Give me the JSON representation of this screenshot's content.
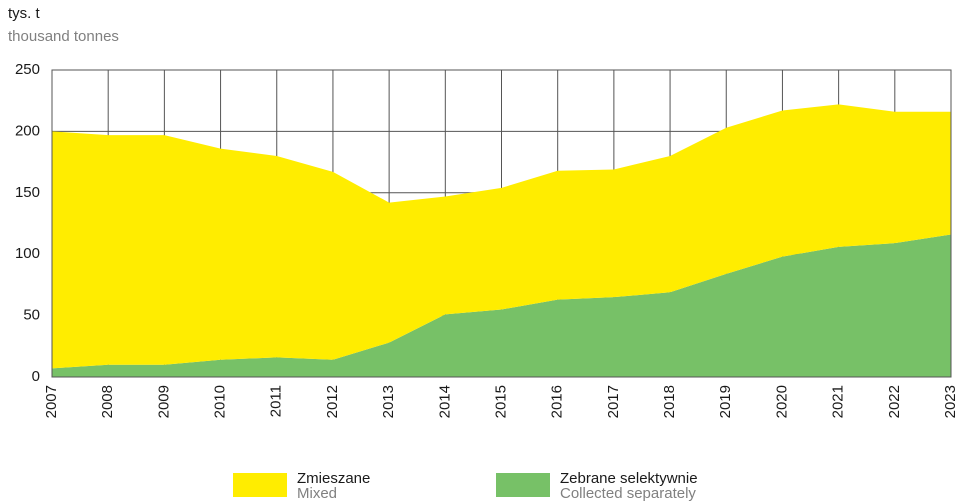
{
  "chart_data": {
    "type": "stacked_area",
    "y_label": "tys. t",
    "y_label_en": "thousand tonnes",
    "categories": [
      "2007",
      "2008",
      "2009",
      "2010",
      "2011",
      "2012",
      "2013",
      "2014",
      "2015",
      "2016",
      "2017",
      "2018",
      "2019",
      "2020",
      "2021",
      "2022",
      "2023"
    ],
    "series": [
      {
        "name": "Zebrane selektywnie",
        "name_en": "Collected separately",
        "color": "#77c167",
        "values": [
          7,
          10,
          10,
          14,
          16,
          14,
          28,
          51,
          55,
          63,
          65,
          69,
          84,
          98,
          106,
          109,
          116
        ]
      },
      {
        "name": "Zmieszane",
        "name_en": "Mixed",
        "color": "#ffed00",
        "values": [
          193,
          187,
          187,
          172,
          164,
          153,
          114,
          96,
          99,
          105,
          104,
          111,
          119,
          119,
          116,
          107,
          100
        ]
      }
    ],
    "legend_order": [
      1,
      0
    ],
    "ylim": [
      0,
      250
    ],
    "yticks": [
      0,
      50,
      100,
      150,
      200,
      250
    ],
    "grid": true
  }
}
